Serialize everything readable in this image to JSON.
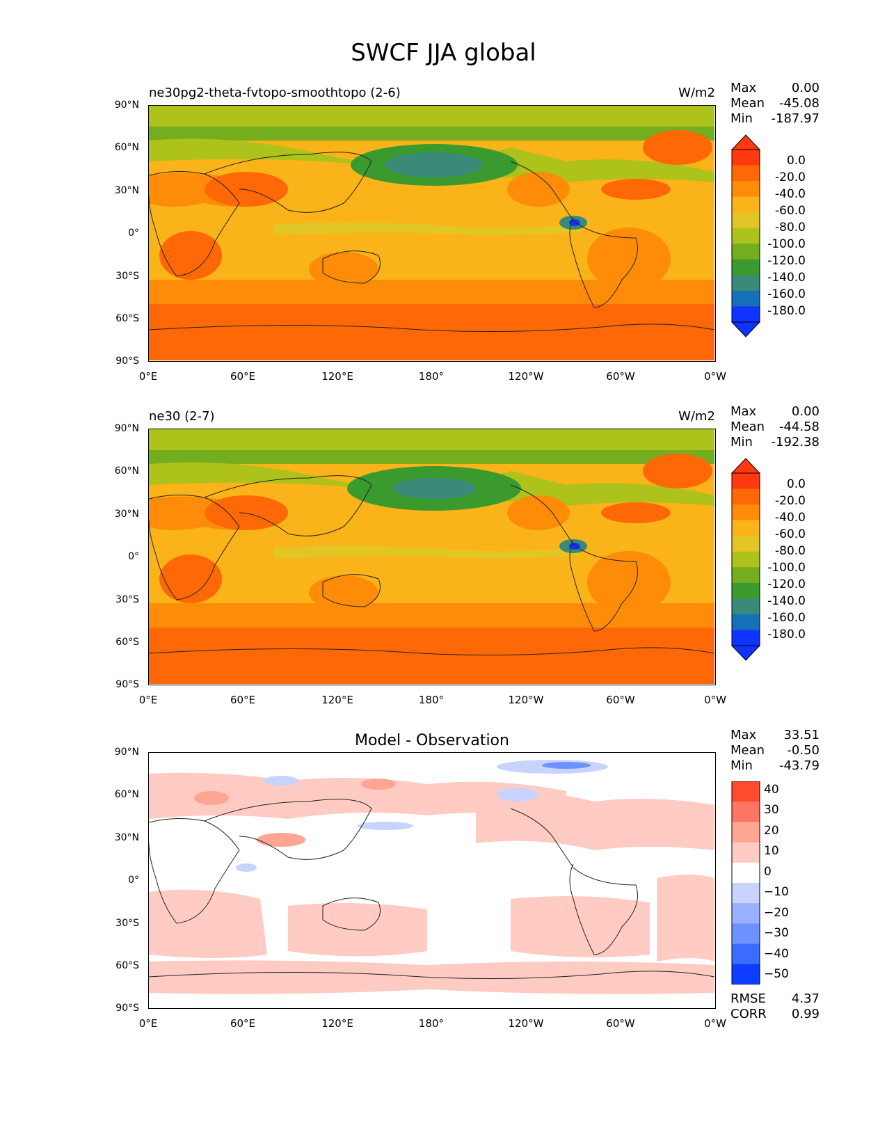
{
  "figure": {
    "title": "SWCF JJA global"
  },
  "colors": {
    "abs_levels": [
      "#1033ff",
      "#1570b8",
      "#3a8a7a",
      "#3b9a2e",
      "#74ad1e",
      "#adc21a",
      "#e2c625",
      "#fab319",
      "#ff8c08",
      "#ff6806",
      "#ff3a10"
    ],
    "diff_levels": [
      "#0c3cff",
      "#3a6cff",
      "#6d92ff",
      "#99afff",
      "#c8d3ff",
      "#ffffff",
      "#ffcbc3",
      "#ffa594",
      "#ff7563",
      "#ff4a2e"
    ],
    "land_outline": "#222222"
  },
  "panels": [
    {
      "id": "test",
      "title_left": "ne30pg2-theta-fvtopo-smoothtopo (2-6)",
      "units": "W/m2",
      "stats": [
        {
          "label": "Max",
          "value": "0.00"
        },
        {
          "label": "Mean",
          "value": "-45.08"
        },
        {
          "label": "Min",
          "value": "-187.97"
        }
      ]
    },
    {
      "id": "reference",
      "title_left": "ne30 (2-7)",
      "units": "W/m2",
      "stats": [
        {
          "label": "Max",
          "value": "0.00"
        },
        {
          "label": "Mean",
          "value": "-44.58"
        },
        {
          "label": "Min",
          "value": "-192.38"
        }
      ]
    },
    {
      "id": "difference",
      "title_center": "Model - Observation",
      "stats": [
        {
          "label": "Max",
          "value": "33.51"
        },
        {
          "label": "Mean",
          "value": "-0.50"
        },
        {
          "label": "Min",
          "value": "-43.79"
        }
      ],
      "extra_stats": [
        {
          "label": "RMSE",
          "value": "4.37"
        },
        {
          "label": "CORR",
          "value": "0.99"
        }
      ]
    }
  ],
  "axes": {
    "lat_ticks": [
      "90°N",
      "60°N",
      "30°N",
      "0°",
      "30°S",
      "60°S",
      "90°S"
    ],
    "lon_ticks": [
      "0°E",
      "60°E",
      "120°E",
      "180°",
      "120°W",
      "60°W",
      "0°W"
    ]
  },
  "colorbars": {
    "abs_labels": [
      "0.0",
      "-20.0",
      "-40.0",
      "-60.0",
      "-80.0",
      "-100.0",
      "-120.0",
      "-140.0",
      "-160.0",
      "-180.0"
    ],
    "diff_labels": [
      "40",
      "30",
      "20",
      "10",
      "0",
      "−10",
      "−20",
      "−30",
      "−40",
      "−50"
    ]
  },
  "chart_data": {
    "type": "heatmap",
    "title": "SWCF JJA global",
    "variable": "SWCF",
    "season": "JJA",
    "units": "W/m2",
    "panels": [
      {
        "name": "ne30pg2-theta-fvtopo-smoothtopo (2-6)",
        "max": 0.0,
        "mean": -45.08,
        "min": -187.97,
        "levels": [
          0,
          -20,
          -40,
          -60,
          -80,
          -100,
          -120,
          -140,
          -160,
          -180
        ]
      },
      {
        "name": "ne30 (2-7)",
        "max": 0.0,
        "mean": -44.58,
        "min": -192.38,
        "levels": [
          0,
          -20,
          -40,
          -60,
          -80,
          -100,
          -120,
          -140,
          -160,
          -180
        ]
      },
      {
        "name": "Model - Observation",
        "max": 33.51,
        "mean": -0.5,
        "min": -43.79,
        "rmse": 4.37,
        "corr": 0.99,
        "levels": [
          40,
          30,
          20,
          10,
          0,
          -10,
          -20,
          -30,
          -40,
          -50
        ]
      }
    ],
    "xlabel_ticks": [
      "0°E",
      "60°E",
      "120°E",
      "180°",
      "120°W",
      "60°W",
      "0°W"
    ],
    "ylabel_ticks": [
      "90°N",
      "60°N",
      "30°N",
      "0°",
      "30°S",
      "60°S",
      "90°S"
    ],
    "xlim": [
      0,
      360
    ],
    "ylim": [
      -90,
      90
    ]
  }
}
